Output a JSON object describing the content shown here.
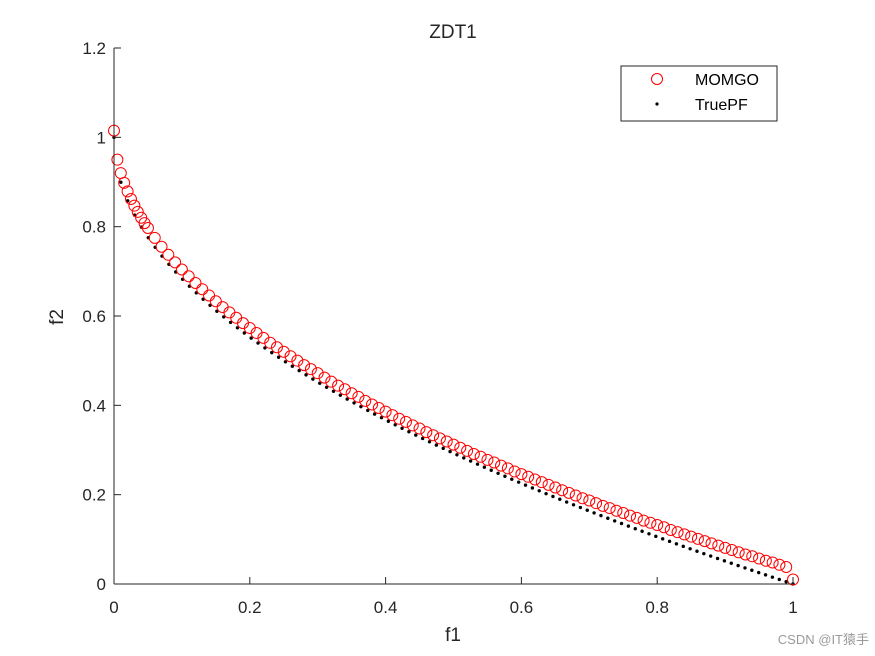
{
  "chart_data": {
    "type": "scatter",
    "title": "ZDT1",
    "xlabel": "f1",
    "ylabel": "f2",
    "xlim": [
      0,
      1
    ],
    "ylim": [
      0,
      1.2
    ],
    "xticks": [
      0,
      0.2,
      0.4,
      0.6,
      0.8,
      1
    ],
    "yticks": [
      0,
      0.2,
      0.4,
      0.6,
      0.8,
      1,
      1.2
    ],
    "xtick_labels": [
      "0",
      "0.2",
      "0.4",
      "0.6",
      "0.8",
      "1"
    ],
    "ytick_labels": [
      "0",
      "0.2",
      "0.4",
      "0.6",
      "0.8",
      "1",
      "1.2"
    ],
    "grid": false,
    "legend_position": "top-right",
    "series": [
      {
        "name": "MOMGO",
        "marker": "open-circle",
        "color": "#ff0000",
        "x": [
          0.0,
          0.005,
          0.01,
          0.015,
          0.02,
          0.025,
          0.03,
          0.035,
          0.04,
          0.045,
          0.05,
          0.06,
          0.07,
          0.08,
          0.09,
          0.1,
          0.11,
          0.12,
          0.13,
          0.14,
          0.15,
          0.16,
          0.17,
          0.18,
          0.19,
          0.2,
          0.21,
          0.22,
          0.23,
          0.24,
          0.25,
          0.26,
          0.27,
          0.28,
          0.29,
          0.3,
          0.31,
          0.32,
          0.33,
          0.34,
          0.35,
          0.36,
          0.37,
          0.38,
          0.39,
          0.4,
          0.41,
          0.42,
          0.43,
          0.44,
          0.45,
          0.46,
          0.47,
          0.48,
          0.49,
          0.5,
          0.51,
          0.52,
          0.53,
          0.54,
          0.55,
          0.56,
          0.57,
          0.58,
          0.59,
          0.6,
          0.61,
          0.62,
          0.63,
          0.64,
          0.65,
          0.66,
          0.67,
          0.68,
          0.69,
          0.7,
          0.71,
          0.72,
          0.73,
          0.74,
          0.75,
          0.76,
          0.77,
          0.78,
          0.79,
          0.8,
          0.81,
          0.82,
          0.83,
          0.84,
          0.85,
          0.86,
          0.87,
          0.88,
          0.89,
          0.9,
          0.91,
          0.92,
          0.93,
          0.94,
          0.95,
          0.96,
          0.97,
          0.98,
          0.99,
          1.0
        ],
        "y": [
          1.015,
          0.95,
          0.92,
          0.898,
          0.879,
          0.862,
          0.847,
          0.833,
          0.82,
          0.808,
          0.797,
          0.775,
          0.755,
          0.737,
          0.72,
          0.704,
          0.689,
          0.674,
          0.66,
          0.646,
          0.633,
          0.62,
          0.608,
          0.596,
          0.584,
          0.573,
          0.562,
          0.551,
          0.54,
          0.53,
          0.52,
          0.51,
          0.5,
          0.49,
          0.481,
          0.472,
          0.462,
          0.453,
          0.444,
          0.436,
          0.427,
          0.419,
          0.41,
          0.402,
          0.394,
          0.386,
          0.378,
          0.37,
          0.363,
          0.355,
          0.348,
          0.34,
          0.333,
          0.326,
          0.319,
          0.312,
          0.305,
          0.298,
          0.291,
          0.285,
          0.278,
          0.272,
          0.265,
          0.259,
          0.252,
          0.246,
          0.24,
          0.234,
          0.228,
          0.222,
          0.216,
          0.21,
          0.204,
          0.198,
          0.192,
          0.187,
          0.181,
          0.175,
          0.17,
          0.164,
          0.159,
          0.153,
          0.148,
          0.142,
          0.137,
          0.132,
          0.127,
          0.121,
          0.116,
          0.111,
          0.106,
          0.101,
          0.096,
          0.091,
          0.086,
          0.081,
          0.076,
          0.071,
          0.066,
          0.062,
          0.057,
          0.052,
          0.048,
          0.043,
          0.038,
          0.01
        ]
      },
      {
        "name": "TruePF",
        "marker": "dot",
        "color": "#000000",
        "formula": "f2 = 1 - sqrt(f1)",
        "x_range": [
          0,
          1
        ],
        "n_points": 100
      }
    ]
  },
  "watermark": "CSDN @IT猿手"
}
